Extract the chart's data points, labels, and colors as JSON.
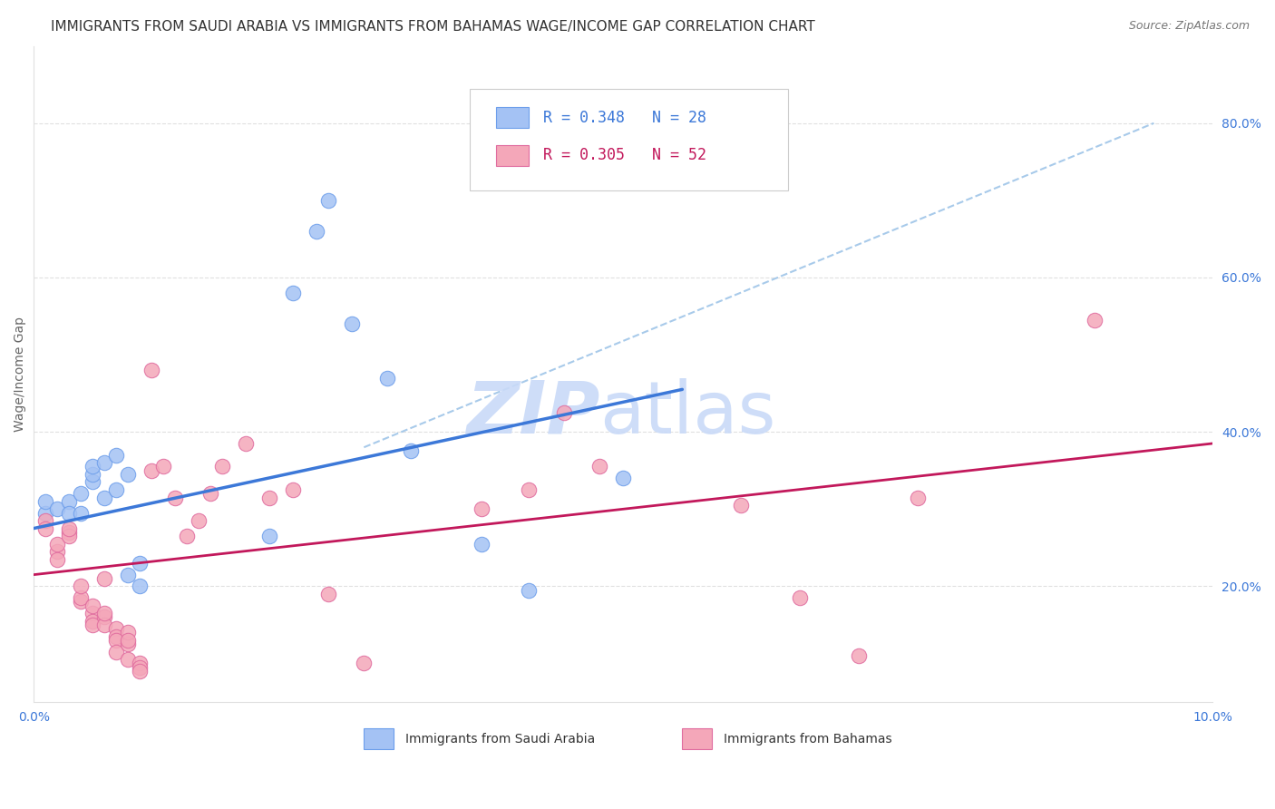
{
  "title": "IMMIGRANTS FROM SAUDI ARABIA VS IMMIGRANTS FROM BAHAMAS WAGE/INCOME GAP CORRELATION CHART",
  "source": "Source: ZipAtlas.com",
  "ylabel": "Wage/Income Gap",
  "xmin": 0.0,
  "xmax": 0.1,
  "ymin": 0.05,
  "ymax": 0.9,
  "right_yticks": [
    0.2,
    0.4,
    0.6,
    0.8
  ],
  "right_ytick_labels": [
    "20.0%",
    "40.0%",
    "60.0%",
    "80.0%"
  ],
  "xticks": [
    0.0,
    0.02,
    0.04,
    0.06,
    0.08,
    0.1
  ],
  "blue_R": 0.348,
  "blue_N": 28,
  "pink_R": 0.305,
  "pink_N": 52,
  "blue_label": "Immigrants from Saudi Arabia",
  "pink_label": "Immigrants from Bahamas",
  "blue_color": "#a4c2f4",
  "pink_color": "#f4a7b9",
  "blue_edge_color": "#6d9eeb",
  "pink_edge_color": "#e06c9f",
  "blue_trend_color": "#3c78d8",
  "pink_trend_color": "#c2185b",
  "dashed_color": "#9fc5e8",
  "blue_x": [
    0.001,
    0.001,
    0.002,
    0.003,
    0.003,
    0.004,
    0.004,
    0.005,
    0.005,
    0.005,
    0.006,
    0.006,
    0.007,
    0.007,
    0.008,
    0.008,
    0.009,
    0.009,
    0.02,
    0.022,
    0.024,
    0.025,
    0.027,
    0.03,
    0.032,
    0.038,
    0.042,
    0.05
  ],
  "blue_y": [
    0.295,
    0.31,
    0.3,
    0.31,
    0.295,
    0.32,
    0.295,
    0.335,
    0.345,
    0.355,
    0.36,
    0.315,
    0.37,
    0.325,
    0.345,
    0.215,
    0.23,
    0.2,
    0.265,
    0.58,
    0.66,
    0.7,
    0.54,
    0.47,
    0.375,
    0.255,
    0.195,
    0.34
  ],
  "pink_x": [
    0.001,
    0.001,
    0.002,
    0.002,
    0.002,
    0.003,
    0.003,
    0.003,
    0.004,
    0.004,
    0.004,
    0.005,
    0.005,
    0.005,
    0.005,
    0.006,
    0.006,
    0.006,
    0.006,
    0.007,
    0.007,
    0.007,
    0.007,
    0.008,
    0.008,
    0.008,
    0.008,
    0.009,
    0.009,
    0.009,
    0.01,
    0.01,
    0.011,
    0.012,
    0.013,
    0.014,
    0.015,
    0.016,
    0.018,
    0.02,
    0.022,
    0.025,
    0.028,
    0.038,
    0.042,
    0.045,
    0.048,
    0.06,
    0.065,
    0.07,
    0.075,
    0.09
  ],
  "pink_y": [
    0.285,
    0.275,
    0.245,
    0.235,
    0.255,
    0.27,
    0.265,
    0.275,
    0.18,
    0.185,
    0.2,
    0.165,
    0.155,
    0.15,
    0.175,
    0.21,
    0.16,
    0.15,
    0.165,
    0.145,
    0.135,
    0.13,
    0.115,
    0.125,
    0.14,
    0.13,
    0.105,
    0.1,
    0.095,
    0.09,
    0.35,
    0.48,
    0.355,
    0.315,
    0.265,
    0.285,
    0.32,
    0.355,
    0.385,
    0.315,
    0.325,
    0.19,
    0.1,
    0.3,
    0.325,
    0.425,
    0.355,
    0.305,
    0.185,
    0.11,
    0.315,
    0.545
  ],
  "blue_trend_x": [
    0.0,
    0.055
  ],
  "blue_trend_y": [
    0.275,
    0.455
  ],
  "pink_trend_x": [
    0.0,
    0.1
  ],
  "pink_trend_y": [
    0.215,
    0.385
  ],
  "dashed_trend_x": [
    0.028,
    0.095
  ],
  "dashed_trend_y": [
    0.38,
    0.8
  ],
  "grid_color": "#e0e0e0",
  "background_color": "#ffffff",
  "title_fontsize": 11,
  "source_fontsize": 9,
  "axis_label_fontsize": 10,
  "tick_fontsize": 10,
  "legend_fontsize": 12,
  "watermark_fontsize": 58,
  "watermark_color": "#c9daf8",
  "tick_color": "#3c78d8"
}
